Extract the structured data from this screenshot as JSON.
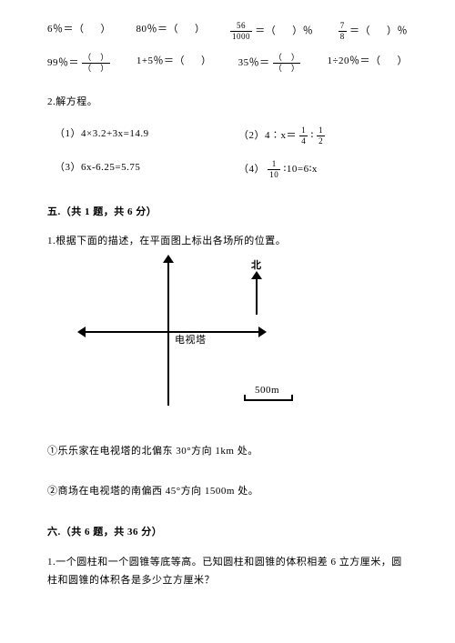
{
  "row1": {
    "c1_a": "6％＝（",
    "c1_b": "）",
    "c2_a": "80％＝（",
    "c2_b": "）",
    "c3_num": "56",
    "c3_den": "1000",
    "c3_a": "＝（",
    "c3_b": "）％",
    "c4_num": "7",
    "c4_den": "8",
    "c4_a": "＝（",
    "c4_b": "）％"
  },
  "row2": {
    "c1_a": "99％＝",
    "c2_a": "1+5％＝（",
    "c2_b": "）",
    "c3_a": "35％＝",
    "c4_a": "1÷20％＝（",
    "c4_b": "）",
    "paren_top": "（ ）",
    "paren_bot": "（ ）"
  },
  "q2": {
    "heading": "2.解方程。"
  },
  "eqs": {
    "e1": "（1）4×3.2+3x=14.9",
    "e2pre": "（2）4∶x＝",
    "e2n1": "1",
    "e2d1": "4",
    "e2mid": " ∶ ",
    "e2n2": "1",
    "e2d2": "2",
    "e3": "（3）6x-6.25=5.75",
    "e4pre": "（4）",
    "e4n": "1",
    "e4d": "10",
    "e4post": " ∶10=6∶x"
  },
  "sec5": {
    "title": "五.（共 1 题，共 6 分）",
    "q1": "1.根据下面的描述，在平面图上标出各场所的位置。",
    "north": "北",
    "center": "电视塔",
    "scale": "500m",
    "s1": "①乐乐家在电视塔的北偏东 30°方向 1km 处。",
    "s2": "②商场在电视塔的南偏西 45°方向 1500m 处。"
  },
  "sec6": {
    "title": "六.（共 6 题，共 36 分）",
    "q1": "1.一个圆柱和一个圆锥等底等高。已知圆柱和圆锥的体积相差 6 立方厘米，圆柱和圆锥的体积各是多少立方厘米？"
  }
}
